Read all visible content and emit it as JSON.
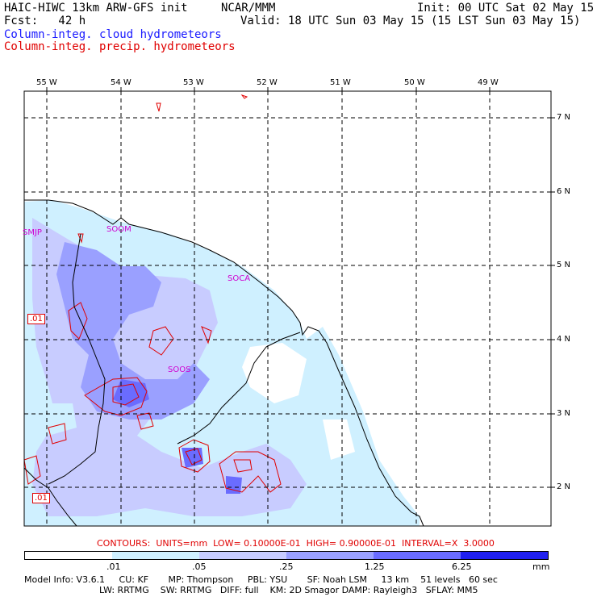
{
  "header": {
    "model": "HAIC-HIWC 13km ARW-GFS init",
    "org": "NCAR/MMM",
    "init": "Init: 00 UTC Sat 02 May 15",
    "fcst": "Fcst:   42 h",
    "valid": "Valid: 18 UTC Sun 03 May 15 (15 LST Sun 03 May 15)",
    "field1": "Column-integ. cloud hydrometeors",
    "field2": "Column-integ. precip. hydrometeors"
  },
  "map": {
    "lon_labels": [
      "55 W",
      "54 W",
      "53 W",
      "52 W",
      "51 W",
      "50 W",
      "49 W"
    ],
    "lat_labels": [
      "7 N",
      "6 N",
      "5 N",
      "4 N",
      "3 N",
      "2 N"
    ],
    "stations": [
      "SMJP",
      "SOOM",
      "SOCA",
      "SOOS"
    ],
    "contour_labels": [
      ".01",
      ".01"
    ]
  },
  "contours_text": "CONTOURS:  UNITS=mm  LOW= 0.10000E-01  HIGH= 0.90000E-01  INTERVAL=X  3.0000",
  "colorbar": {
    "ticks": [
      ".01",
      ".05",
      ".25",
      "1.25",
      "6.25"
    ],
    "unit": "mm",
    "colors": [
      "#ffffff",
      "#cff0ff",
      "#c8ccff",
      "#9aa0ff",
      "#6a6cff",
      "#2020f0"
    ]
  },
  "model_info": {
    "line1": "Model Info: V3.6.1     CU: KF       MP: Thompson     PBL: YSU       SF: Noah LSM     13 km    51 levels   60 sec",
    "line2": "LW: RRTMG    SW: RRTMG   DIFF: full    KM: 2D Smagor DAMP: Rayleigh3   SFLAY: MM5"
  }
}
